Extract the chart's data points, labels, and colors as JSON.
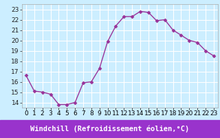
{
  "x": [
    0,
    1,
    2,
    3,
    4,
    5,
    6,
    7,
    8,
    9,
    10,
    11,
    12,
    13,
    14,
    15,
    16,
    17,
    18,
    19,
    20,
    21,
    22,
    23
  ],
  "y": [
    16.6,
    15.1,
    15.0,
    14.8,
    13.8,
    13.8,
    14.0,
    15.9,
    16.0,
    17.3,
    19.9,
    21.4,
    22.3,
    22.3,
    22.8,
    22.7,
    21.9,
    22.0,
    21.0,
    20.5,
    20.0,
    19.8,
    19.0,
    18.5
  ],
  "line_color": "#993399",
  "marker": "D",
  "marker_size": 2.5,
  "bg_color": "#cceeff",
  "grid_color": "#ffffff",
  "xlabel": "Windchill (Refroidissement éolien,°C)",
  "xlabel_fontsize": 7.5,
  "ylabel_ticks": [
    14,
    15,
    16,
    17,
    18,
    19,
    20,
    21,
    22,
    23
  ],
  "xlim": [
    -0.5,
    23.5
  ],
  "ylim": [
    13.5,
    23.5
  ],
  "tick_fontsize": 6.5,
  "xlabel_bg": "#9933cc",
  "xlabel_fg": "#ffffff"
}
